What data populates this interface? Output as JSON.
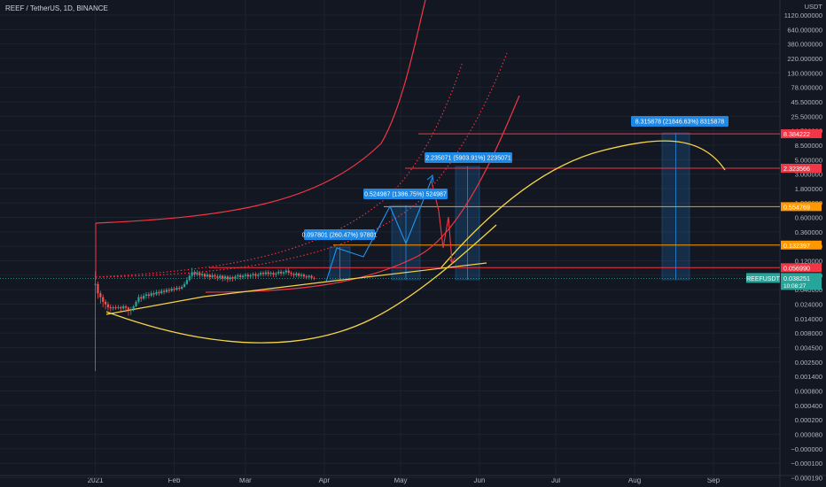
{
  "header": {
    "title": "REEF / TetherUS, 1D, BINANCE"
  },
  "colors": {
    "background": "#131722",
    "grid": "#1e2230",
    "axis_text": "#b2b5be",
    "up": "#26a69a",
    "down": "#ef5350",
    "red": "#f23645",
    "yellow": "#f5d547",
    "orange": "#ff9800",
    "blue": "#2196f3"
  },
  "chart_data": {
    "type": "candlestick",
    "symbol": "REEFUSDT",
    "scale": "log",
    "price_unit": "USDT",
    "x_axis": {
      "ticks": [
        "2021",
        "Feb",
        "Mar",
        "Apr",
        "May",
        "Jun",
        "Jul",
        "Aug",
        "Sep"
      ]
    },
    "y_axis": {
      "ticks": [
        "1120.000000",
        "640.000000",
        "380.000000",
        "220.000000",
        "130.000000",
        "78.000000",
        "45.500000",
        "25.500000",
        "14.500000",
        "8.500000",
        "5.000000",
        "3.000000",
        "1.800000",
        "1.000000",
        "0.600000",
        "0.360000",
        "0.200000",
        "0.120000",
        "0.070000",
        "0.040000",
        "0.024000",
        "0.014000",
        "0.008000",
        "0.004500",
        "0.002500",
        "0.001400",
        "0.000800",
        "0.000400",
        "0.000200",
        "0.000080",
        "−0.000000",
        "−0.000100",
        "−0.000190"
      ]
    },
    "price_lines": [
      {
        "value": "8.384222",
        "color": "#f23645"
      },
      {
        "value": "2.323566",
        "color": "#f23645"
      },
      {
        "value": "0.554769",
        "color": "#ff9800"
      },
      {
        "value": "0.132397",
        "color": "#ff9800"
      },
      {
        "value": "0.056990",
        "color": "#f23645"
      }
    ],
    "current_price": {
      "label": "REEFUSDT",
      "value": "0.038251",
      "countdown": "10:08:27"
    },
    "targets": [
      {
        "label": "0.097801 (260.47%) 97801"
      },
      {
        "label": "0.524987 (1386.75%) 524987"
      },
      {
        "label": "2.235071 (5903.91%) 2235071"
      },
      {
        "label": "8.315878 (21846.63%) 8315878"
      }
    ],
    "candles": [
      {
        "d": 0,
        "o": 0.03,
        "c": 0.031,
        "h": 0.05,
        "l": 0.0012
      },
      {
        "d": 1,
        "o": 0.031,
        "c": 0.022,
        "h": 0.034,
        "l": 0.018
      },
      {
        "d": 2,
        "o": 0.022,
        "c": 0.019,
        "h": 0.024,
        "l": 0.015
      },
      {
        "d": 3,
        "o": 0.019,
        "c": 0.016,
        "h": 0.021,
        "l": 0.013
      },
      {
        "d": 4,
        "o": 0.016,
        "c": 0.0145,
        "h": 0.0175,
        "l": 0.012
      },
      {
        "d": 5,
        "o": 0.0145,
        "c": 0.013,
        "h": 0.016,
        "l": 0.0115
      },
      {
        "d": 6,
        "o": 0.013,
        "c": 0.0125,
        "h": 0.0145,
        "l": 0.011
      },
      {
        "d": 7,
        "o": 0.0125,
        "c": 0.013,
        "h": 0.014,
        "l": 0.0115
      },
      {
        "d": 8,
        "o": 0.013,
        "c": 0.0128,
        "h": 0.0142,
        "l": 0.0118
      },
      {
        "d": 9,
        "o": 0.0128,
        "c": 0.0131,
        "h": 0.0142,
        "l": 0.012
      },
      {
        "d": 10,
        "o": 0.0131,
        "c": 0.0125,
        "h": 0.0138,
        "l": 0.0112
      },
      {
        "d": 11,
        "o": 0.0125,
        "c": 0.0135,
        "h": 0.0145,
        "l": 0.0118
      },
      {
        "d": 12,
        "o": 0.0135,
        "c": 0.0128,
        "h": 0.0142,
        "l": 0.0108
      },
      {
        "d": 13,
        "o": 0.0128,
        "c": 0.0118,
        "h": 0.0134,
        "l": 0.0095
      },
      {
        "d": 14,
        "o": 0.0118,
        "c": 0.0122,
        "h": 0.0132,
        "l": 0.0098
      },
      {
        "d": 15,
        "o": 0.0122,
        "c": 0.0135,
        "h": 0.0142,
        "l": 0.0112
      },
      {
        "d": 16,
        "o": 0.0135,
        "c": 0.016,
        "h": 0.017,
        "l": 0.013
      },
      {
        "d": 17,
        "o": 0.016,
        "c": 0.019,
        "h": 0.021,
        "l": 0.015
      },
      {
        "d": 18,
        "o": 0.019,
        "c": 0.018,
        "h": 0.021,
        "l": 0.016
      },
      {
        "d": 19,
        "o": 0.018,
        "c": 0.02,
        "h": 0.022,
        "l": 0.017
      },
      {
        "d": 20,
        "o": 0.02,
        "c": 0.021,
        "h": 0.023,
        "l": 0.018
      },
      {
        "d": 21,
        "o": 0.021,
        "c": 0.02,
        "h": 0.023,
        "l": 0.018
      },
      {
        "d": 22,
        "o": 0.02,
        "c": 0.022,
        "h": 0.024,
        "l": 0.019
      },
      {
        "d": 23,
        "o": 0.022,
        "c": 0.021,
        "h": 0.024,
        "l": 0.019
      },
      {
        "d": 24,
        "o": 0.021,
        "c": 0.023,
        "h": 0.025,
        "l": 0.02
      },
      {
        "d": 25,
        "o": 0.023,
        "c": 0.022,
        "h": 0.025,
        "l": 0.02
      },
      {
        "d": 26,
        "o": 0.022,
        "c": 0.024,
        "h": 0.026,
        "l": 0.021
      },
      {
        "d": 27,
        "o": 0.024,
        "c": 0.023,
        "h": 0.026,
        "l": 0.021
      },
      {
        "d": 28,
        "o": 0.023,
        "c": 0.025,
        "h": 0.027,
        "l": 0.022
      },
      {
        "d": 29,
        "o": 0.025,
        "c": 0.024,
        "h": 0.027,
        "l": 0.022
      },
      {
        "d": 30,
        "o": 0.024,
        "c": 0.026,
        "h": 0.028,
        "l": 0.023
      },
      {
        "d": 31,
        "o": 0.026,
        "c": 0.025,
        "h": 0.028,
        "l": 0.023
      },
      {
        "d": 32,
        "o": 0.025,
        "c": 0.027,
        "h": 0.029,
        "l": 0.024
      },
      {
        "d": 33,
        "o": 0.027,
        "c": 0.026,
        "h": 0.029,
        "l": 0.024
      },
      {
        "d": 34,
        "o": 0.026,
        "c": 0.028,
        "h": 0.03,
        "l": 0.025
      },
      {
        "d": 35,
        "o": 0.028,
        "c": 0.031,
        "h": 0.034,
        "l": 0.027
      },
      {
        "d": 36,
        "o": 0.031,
        "c": 0.036,
        "h": 0.04,
        "l": 0.03
      },
      {
        "d": 37,
        "o": 0.036,
        "c": 0.042,
        "h": 0.047,
        "l": 0.034
      },
      {
        "d": 38,
        "o": 0.042,
        "c": 0.048,
        "h": 0.057,
        "l": 0.039
      },
      {
        "d": 39,
        "o": 0.048,
        "c": 0.044,
        "h": 0.052,
        "l": 0.04
      },
      {
        "d": 40,
        "o": 0.044,
        "c": 0.047,
        "h": 0.052,
        "l": 0.041
      },
      {
        "d": 41,
        "o": 0.047,
        "c": 0.043,
        "h": 0.05,
        "l": 0.039
      },
      {
        "d": 42,
        "o": 0.043,
        "c": 0.045,
        "h": 0.049,
        "l": 0.04
      },
      {
        "d": 43,
        "o": 0.045,
        "c": 0.041,
        "h": 0.047,
        "l": 0.037
      },
      {
        "d": 44,
        "o": 0.041,
        "c": 0.044,
        "h": 0.048,
        "l": 0.039
      },
      {
        "d": 45,
        "o": 0.044,
        "c": 0.04,
        "h": 0.046,
        "l": 0.036
      },
      {
        "d": 46,
        "o": 0.04,
        "c": 0.043,
        "h": 0.047,
        "l": 0.038
      },
      {
        "d": 47,
        "o": 0.043,
        "c": 0.041,
        "h": 0.046,
        "l": 0.037
      },
      {
        "d": 48,
        "o": 0.041,
        "c": 0.039,
        "h": 0.045,
        "l": 0.035
      },
      {
        "d": 49,
        "o": 0.039,
        "c": 0.042,
        "h": 0.045,
        "l": 0.036
      },
      {
        "d": 50,
        "o": 0.042,
        "c": 0.038,
        "h": 0.044,
        "l": 0.034
      },
      {
        "d": 51,
        "o": 0.038,
        "c": 0.041,
        "h": 0.044,
        "l": 0.035
      },
      {
        "d": 52,
        "o": 0.041,
        "c": 0.037,
        "h": 0.043,
        "l": 0.033
      },
      {
        "d": 53,
        "o": 0.037,
        "c": 0.04,
        "h": 0.043,
        "l": 0.034
      },
      {
        "d": 54,
        "o": 0.04,
        "c": 0.038,
        "h": 0.042,
        "l": 0.034
      },
      {
        "d": 55,
        "o": 0.038,
        "c": 0.041,
        "h": 0.044,
        "l": 0.035
      },
      {
        "d": 56,
        "o": 0.041,
        "c": 0.043,
        "h": 0.046,
        "l": 0.037
      },
      {
        "d": 57,
        "o": 0.043,
        "c": 0.04,
        "h": 0.046,
        "l": 0.036
      },
      {
        "d": 58,
        "o": 0.04,
        "c": 0.042,
        "h": 0.045,
        "l": 0.037
      },
      {
        "d": 59,
        "o": 0.042,
        "c": 0.044,
        "h": 0.047,
        "l": 0.038
      },
      {
        "d": 60,
        "o": 0.044,
        "c": 0.041,
        "h": 0.047,
        "l": 0.037
      },
      {
        "d": 61,
        "o": 0.041,
        "c": 0.043,
        "h": 0.046,
        "l": 0.038
      },
      {
        "d": 62,
        "o": 0.043,
        "c": 0.045,
        "h": 0.048,
        "l": 0.039
      },
      {
        "d": 63,
        "o": 0.045,
        "c": 0.042,
        "h": 0.048,
        "l": 0.038
      },
      {
        "d": 64,
        "o": 0.042,
        "c": 0.044,
        "h": 0.047,
        "l": 0.039
      },
      {
        "d": 65,
        "o": 0.044,
        "c": 0.047,
        "h": 0.05,
        "l": 0.041
      },
      {
        "d": 66,
        "o": 0.047,
        "c": 0.045,
        "h": 0.05,
        "l": 0.041
      },
      {
        "d": 67,
        "o": 0.045,
        "c": 0.048,
        "h": 0.052,
        "l": 0.042
      },
      {
        "d": 68,
        "o": 0.048,
        "c": 0.045,
        "h": 0.052,
        "l": 0.041
      },
      {
        "d": 69,
        "o": 0.045,
        "c": 0.047,
        "h": 0.05,
        "l": 0.041
      },
      {
        "d": 70,
        "o": 0.047,
        "c": 0.044,
        "h": 0.05,
        "l": 0.04
      },
      {
        "d": 71,
        "o": 0.044,
        "c": 0.046,
        "h": 0.049,
        "l": 0.04
      },
      {
        "d": 72,
        "o": 0.046,
        "c": 0.049,
        "h": 0.053,
        "l": 0.043
      },
      {
        "d": 73,
        "o": 0.049,
        "c": 0.046,
        "h": 0.053,
        "l": 0.042
      },
      {
        "d": 74,
        "o": 0.046,
        "c": 0.048,
        "h": 0.051,
        "l": 0.042
      },
      {
        "d": 75,
        "o": 0.048,
        "c": 0.051,
        "h": 0.055,
        "l": 0.044
      },
      {
        "d": 76,
        "o": 0.051,
        "c": 0.047,
        "h": 0.056,
        "l": 0.043
      },
      {
        "d": 77,
        "o": 0.047,
        "c": 0.045,
        "h": 0.05,
        "l": 0.041
      },
      {
        "d": 78,
        "o": 0.045,
        "c": 0.043,
        "h": 0.048,
        "l": 0.039
      },
      {
        "d": 79,
        "o": 0.043,
        "c": 0.046,
        "h": 0.049,
        "l": 0.04
      },
      {
        "d": 80,
        "o": 0.046,
        "c": 0.042,
        "h": 0.048,
        "l": 0.039
      },
      {
        "d": 81,
        "o": 0.042,
        "c": 0.044,
        "h": 0.047,
        "l": 0.039
      },
      {
        "d": 82,
        "o": 0.044,
        "c": 0.041,
        "h": 0.046,
        "l": 0.038
      },
      {
        "d": 83,
        "o": 0.041,
        "c": 0.04,
        "h": 0.044,
        "l": 0.037
      },
      {
        "d": 84,
        "o": 0.04,
        "c": 0.042,
        "h": 0.044,
        "l": 0.037
      },
      {
        "d": 85,
        "o": 0.042,
        "c": 0.039,
        "h": 0.044,
        "l": 0.036
      },
      {
        "d": 86,
        "o": 0.039,
        "c": 0.0383,
        "h": 0.041,
        "l": 0.036
      }
    ]
  }
}
